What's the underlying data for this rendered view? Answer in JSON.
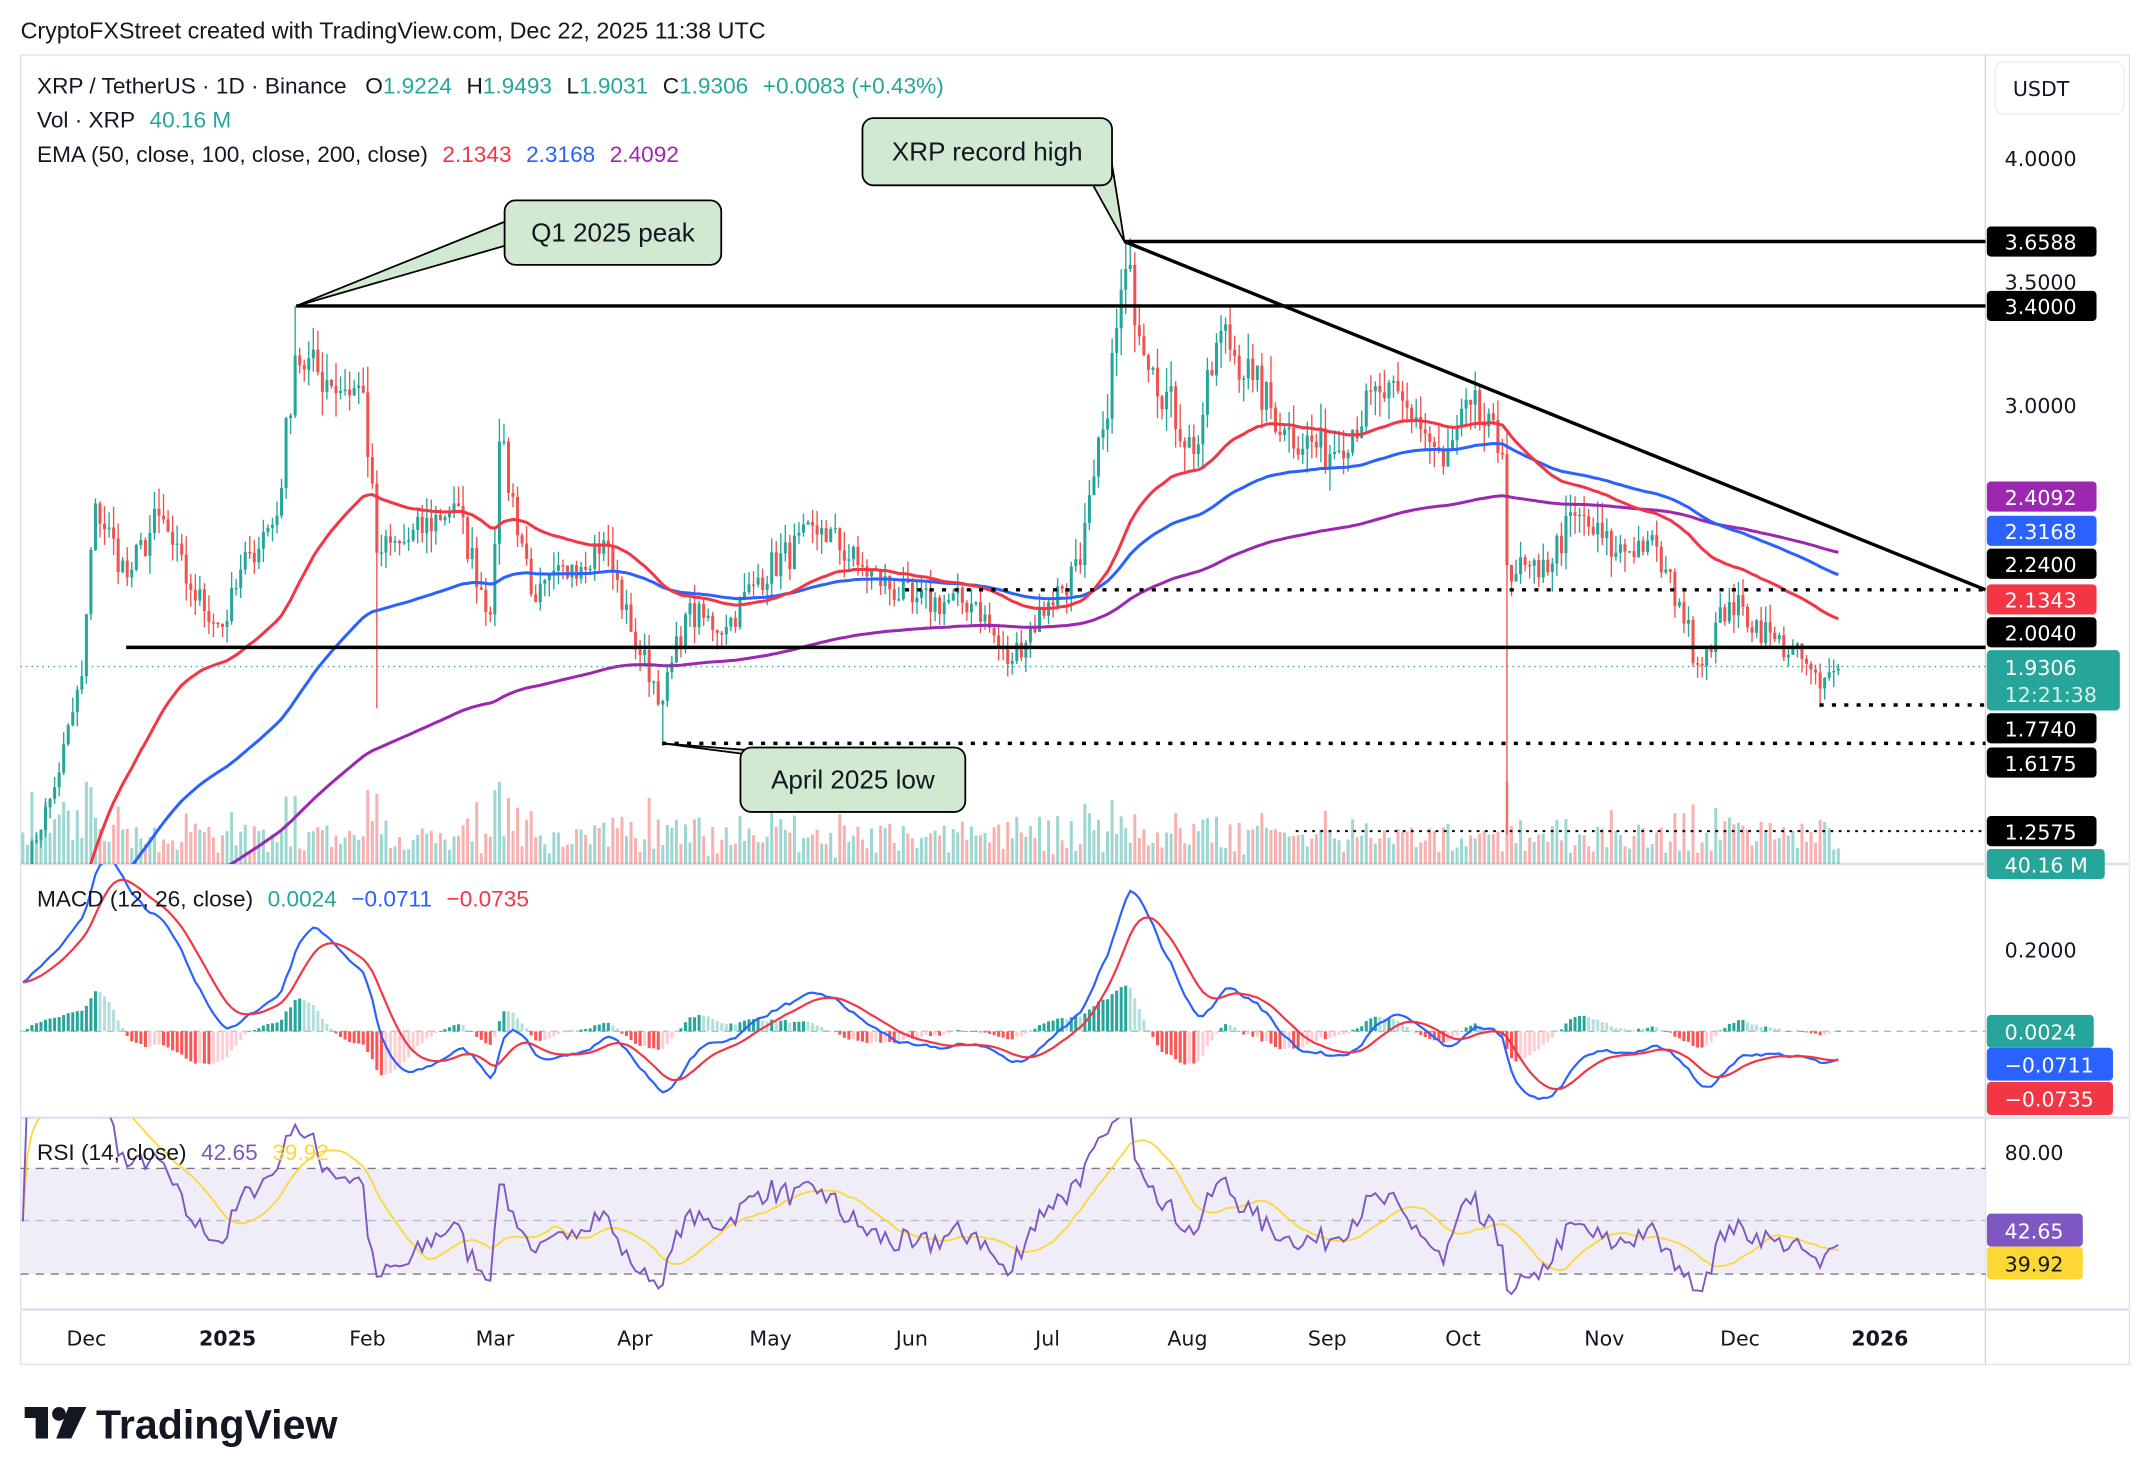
{
  "header": {
    "attribution": "CryptoFXStreet created with TradingView.com, Dec 22, 2025 11:38 UTC"
  },
  "legend": {
    "symbol": "XRP / TetherUS · 1D · Binance",
    "o_label": "O",
    "o": "1.9224",
    "h_label": "H",
    "h": "1.9493",
    "l_label": "L",
    "l": "1.9031",
    "c_label": "C",
    "c": "1.9306",
    "change": "+0.0083 (+0.43%)",
    "vol_label": "Vol · XRP",
    "vol": "40.16 M",
    "ema_label": "EMA (50, close, 100, close, 200, close)",
    "ema50": "2.1343",
    "ema100": "2.3168",
    "ema200": "2.4092",
    "macd_label": "MACD (12, 26, close)",
    "macd_hist": "0.0024",
    "macd_line": "−0.0711",
    "macd_signal": "−0.0735",
    "rsi_label": "RSI (14, close)",
    "rsi": "42.65",
    "rsi_ma": "39.92"
  },
  "currency_button": "USDT",
  "price_axis": {
    "ticks": [
      "4.0000",
      "3.5000",
      "3.0000"
    ]
  },
  "price_labels": [
    {
      "text": "3.6588",
      "bg": "#000000",
      "fg": "#ffffff"
    },
    {
      "text": "3.4000",
      "bg": "#000000",
      "fg": "#ffffff"
    },
    {
      "text": "2.4092",
      "bg": "#9c27b0",
      "fg": "#ffffff"
    },
    {
      "text": "2.3168",
      "bg": "#2962ff",
      "fg": "#ffffff"
    },
    {
      "text": "2.2400",
      "bg": "#000000",
      "fg": "#ffffff"
    },
    {
      "text": "2.1343",
      "bg": "#f23645",
      "fg": "#ffffff"
    },
    {
      "text": "2.0040",
      "bg": "#000000",
      "fg": "#ffffff"
    },
    {
      "text": "1.7740",
      "bg": "#000000",
      "fg": "#ffffff"
    },
    {
      "text": "1.6175",
      "bg": "#000000",
      "fg": "#ffffff"
    },
    {
      "text": "1.2575",
      "bg": "#000000",
      "fg": "#ffffff"
    },
    {
      "text": "40.16 M",
      "bg": "#26a69a",
      "fg": "#ffffff"
    }
  ],
  "last_price": {
    "text": "1.9306",
    "countdown": "12:21:38",
    "bg": "#26a69a"
  },
  "macd_axis": {
    "ticks": [
      "0.2000"
    ]
  },
  "macd_labels": [
    {
      "text": "0.0024",
      "bg": "#26a69a"
    },
    {
      "text": "−0.0711",
      "bg": "#2962ff"
    },
    {
      "text": "−0.0735",
      "bg": "#f23645"
    }
  ],
  "rsi_axis": {
    "ticks": [
      "80.00"
    ]
  },
  "rsi_labels": [
    {
      "text": "42.65",
      "bg": "#7e57c2",
      "fg": "#ffffff"
    },
    {
      "text": "39.92",
      "bg": "#fdd835",
      "fg": "#131722"
    }
  ],
  "time_axis": [
    {
      "text": "Dec",
      "bold": false
    },
    {
      "text": "2025",
      "bold": true
    },
    {
      "text": "Feb",
      "bold": false
    },
    {
      "text": "Mar",
      "bold": false
    },
    {
      "text": "Apr",
      "bold": false
    },
    {
      "text": "May",
      "bold": false
    },
    {
      "text": "Jun",
      "bold": false
    },
    {
      "text": "Jul",
      "bold": false
    },
    {
      "text": "Aug",
      "bold": false
    },
    {
      "text": "Sep",
      "bold": false
    },
    {
      "text": "Oct",
      "bold": false
    },
    {
      "text": "Nov",
      "bold": false
    },
    {
      "text": "Dec",
      "bold": false
    },
    {
      "text": "2026",
      "bold": true
    }
  ],
  "annotations": {
    "q1_peak": "Q1 2025 peak",
    "record_high": "XRP record high",
    "april_low": "April 2025 low"
  },
  "logo": "TradingView",
  "colors": {
    "up": "#26a69a",
    "down": "#ef5350",
    "ema50": "#f23645",
    "ema100": "#2962ff",
    "ema200": "#9c27b0",
    "rsi": "#7e57c2",
    "rsi_ma": "#fdd835",
    "callout": "#d1e9d1"
  },
  "chart_data": {
    "type": "candlestick",
    "symbol": "XRP / TetherUS",
    "interval": "1D",
    "y_scale": "linear",
    "ylim": [
      1.2,
      4.1
    ],
    "approx_closes": [
      [
        "2024-11-17",
        1.1
      ],
      [
        "2024-11-24",
        1.45
      ],
      [
        "2024-11-30",
        1.9
      ],
      [
        "2024-12-03",
        2.6
      ],
      [
        "2024-12-10",
        2.3
      ],
      [
        "2024-12-17",
        2.55
      ],
      [
        "2024-12-24",
        2.25
      ],
      [
        "2024-12-31",
        2.1
      ],
      [
        "2025-01-06",
        2.4
      ],
      [
        "2025-01-12",
        2.55
      ],
      [
        "2025-01-16",
        3.2
      ],
      [
        "2025-01-23",
        3.1
      ],
      [
        "2025-01-31",
        3.05
      ],
      [
        "2025-02-03",
        2.4
      ],
      [
        "2025-02-10",
        2.45
      ],
      [
        "2025-02-20",
        2.6
      ],
      [
        "2025-02-28",
        2.15
      ],
      [
        "2025-03-02",
        2.85
      ],
      [
        "2025-03-10",
        2.2
      ],
      [
        "2025-03-18",
        2.35
      ],
      [
        "2025-03-25",
        2.45
      ],
      [
        "2025-03-31",
        2.08
      ],
      [
        "2025-04-07",
        1.8
      ],
      [
        "2025-04-12",
        2.15
      ],
      [
        "2025-04-21",
        2.1
      ],
      [
        "2025-04-28",
        2.3
      ],
      [
        "2025-05-12",
        2.5
      ],
      [
        "2025-05-20",
        2.35
      ],
      [
        "2025-06-01",
        2.2
      ],
      [
        "2025-06-15",
        2.2
      ],
      [
        "2025-06-22",
        1.95
      ],
      [
        "2025-07-01",
        2.2
      ],
      [
        "2025-07-08",
        2.35
      ],
      [
        "2025-07-13",
        2.9
      ],
      [
        "2025-07-18",
        3.55
      ],
      [
        "2025-07-24",
        3.15
      ],
      [
        "2025-08-02",
        2.8
      ],
      [
        "2025-08-08",
        3.3
      ],
      [
        "2025-08-15",
        3.1
      ],
      [
        "2025-08-22",
        2.9
      ],
      [
        "2025-09-01",
        2.8
      ],
      [
        "2025-09-12",
        3.05
      ],
      [
        "2025-09-20",
        2.95
      ],
      [
        "2025-09-26",
        2.75
      ],
      [
        "2025-10-02",
        3.0
      ],
      [
        "2025-10-09",
        2.8
      ],
      [
        "2025-10-10",
        2.35
      ],
      [
        "2025-10-17",
        2.3
      ],
      [
        "2025-10-25",
        2.55
      ],
      [
        "2025-11-03",
        2.4
      ],
      [
        "2025-11-10",
        2.45
      ],
      [
        "2025-11-17",
        2.2
      ],
      [
        "2025-11-21",
        1.95
      ],
      [
        "2025-11-28",
        2.2
      ],
      [
        "2025-12-08",
        2.05
      ],
      [
        "2025-12-15",
        1.95
      ],
      [
        "2025-12-18",
        1.85
      ],
      [
        "2025-12-22",
        1.93
      ]
    ],
    "key_extremes": [
      {
        "date": "2025-01-16",
        "type": "high",
        "value": 3.4
      },
      {
        "date": "2025-02-03",
        "type": "low",
        "value": 1.77
      },
      {
        "date": "2025-04-07",
        "type": "low",
        "value": 1.6175
      },
      {
        "date": "2025-07-18",
        "type": "high",
        "value": 3.6588
      },
      {
        "date": "2025-10-10",
        "type": "low",
        "value": 1.2575
      },
      {
        "date": "2025-12-18",
        "type": "low",
        "value": 1.774
      }
    ],
    "horizontal_levels": [
      3.6588,
      3.4,
      2.24,
      2.004,
      1.774,
      1.6175,
      1.2575
    ],
    "trendline": {
      "from": [
        "2025-07-18",
        3.6588
      ],
      "to": [
        "2026-01-08",
        2.24
      ]
    },
    "last": {
      "open": 1.9224,
      "high": 1.9493,
      "low": 1.9031,
      "close": 1.9306,
      "volume_m": 40.16
    },
    "ema": {
      "50": 2.1343,
      "100": 2.3168,
      "200": 2.4092
    },
    "macd": {
      "histogram": 0.0024,
      "macd": -0.0711,
      "signal": -0.0735
    },
    "rsi": {
      "rsi": 42.65,
      "ma": 39.92,
      "bands": [
        30,
        50,
        70
      ]
    }
  }
}
